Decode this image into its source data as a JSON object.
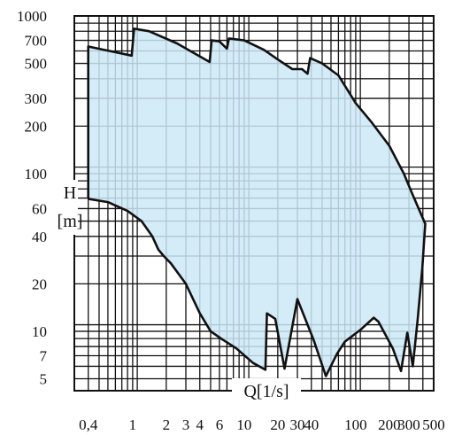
{
  "chart_data": {
    "type": "area",
    "title": "",
    "xlabel": "Q[1/s]",
    "ylabel_line1": "H",
    "ylabel_line2": "[m]",
    "x_scale": "log",
    "y_scale": "log",
    "xlim": [
      0.3,
      500
    ],
    "ylim": [
      4.2,
      1000
    ],
    "grid": true,
    "x_ticks": [
      {
        "value": 0.4,
        "label": "0,4"
      },
      {
        "value": 1,
        "label": "1"
      },
      {
        "value": 2,
        "label": "2"
      },
      {
        "value": 3,
        "label": "3"
      },
      {
        "value": 4,
        "label": "4"
      },
      {
        "value": 6,
        "label": "6"
      },
      {
        "value": 10,
        "label": "10"
      },
      {
        "value": 20,
        "label": "20"
      },
      {
        "value": 30,
        "label": "30"
      },
      {
        "value": 40,
        "label": "40"
      },
      {
        "value": 100,
        "label": "100"
      },
      {
        "value": 200,
        "label": "200"
      },
      {
        "value": 300,
        "label": "300"
      },
      {
        "value": 500,
        "label": "500"
      }
    ],
    "y_ticks": [
      {
        "value": 1000,
        "label": "1000"
      },
      {
        "value": 700,
        "label": "700"
      },
      {
        "value": 500,
        "label": "500"
      },
      {
        "value": 300,
        "label": "300"
      },
      {
        "value": 200,
        "label": "200"
      },
      {
        "value": 100,
        "label": "100"
      },
      {
        "value": 60,
        "label": "60"
      },
      {
        "value": 40,
        "label": "40"
      },
      {
        "value": 20,
        "label": "20"
      },
      {
        "value": 10,
        "label": "10"
      },
      {
        "value": 7,
        "label": "7"
      },
      {
        "value": 5,
        "label": "5"
      }
    ],
    "grid_x": [
      0.4,
      0.5,
      0.6,
      0.7,
      0.8,
      0.9,
      1,
      1.1,
      2,
      3,
      4,
      5,
      6,
      7,
      8,
      9,
      10,
      11,
      20,
      30,
      40,
      50,
      60,
      70,
      80,
      90,
      100,
      110,
      200,
      300,
      400
    ],
    "grid_y": [
      5,
      6,
      7,
      8,
      9,
      10,
      11,
      20,
      30,
      40,
      50,
      60,
      70,
      80,
      90,
      100,
      110,
      200,
      300,
      400,
      500,
      600,
      700,
      800,
      900,
      1000
    ],
    "series": [
      {
        "points": [
          [
            0.4,
            640
          ],
          [
            0.98,
            560
          ],
          [
            1.03,
            830
          ],
          [
            1.4,
            800
          ],
          [
            2.5,
            670
          ],
          [
            4.9,
            510
          ],
          [
            5.1,
            700
          ],
          [
            6.0,
            690
          ],
          [
            7.0,
            620
          ],
          [
            7.3,
            720
          ],
          [
            10,
            700
          ],
          [
            15,
            610
          ],
          [
            20,
            530
          ],
          [
            27,
            460
          ],
          [
            33,
            460
          ],
          [
            37,
            430
          ],
          [
            39,
            540
          ],
          [
            50,
            500
          ],
          [
            70,
            420
          ],
          [
            100,
            280
          ],
          [
            140,
            210
          ],
          [
            200,
            150
          ],
          [
            270,
            100
          ],
          [
            320,
            75
          ],
          [
            420,
            48
          ],
          [
            395,
            25
          ],
          [
            360,
            12
          ],
          [
            325,
            6
          ],
          [
            290,
            9.8
          ],
          [
            255,
            5.6
          ],
          [
            215,
            7.8
          ],
          [
            160,
            11.5
          ],
          [
            145,
            12.2
          ],
          [
            110,
            10.2
          ],
          [
            80,
            8.6
          ],
          [
            68,
            7.2
          ],
          [
            54,
            5.2
          ],
          [
            42,
            8.8
          ],
          [
            30,
            16
          ],
          [
            23,
            5.8
          ],
          [
            19,
            12
          ],
          [
            16,
            13
          ],
          [
            15.5,
            5.7
          ],
          [
            12,
            6.3
          ],
          [
            8.5,
            7.8
          ],
          [
            6.2,
            9
          ],
          [
            5,
            10
          ],
          [
            4,
            13
          ],
          [
            3,
            20
          ],
          [
            2.2,
            27
          ],
          [
            1.9,
            30
          ],
          [
            1.7,
            33
          ],
          [
            1.5,
            40
          ],
          [
            1.2,
            50
          ],
          [
            0.9,
            58
          ],
          [
            0.6,
            66
          ],
          [
            0.41,
            69
          ],
          [
            0.4,
            70
          ]
        ]
      }
    ],
    "colors": {
      "fill": "#cce8f7",
      "stroke": "#111111",
      "grid": "#111111",
      "text": "#111111"
    }
  }
}
